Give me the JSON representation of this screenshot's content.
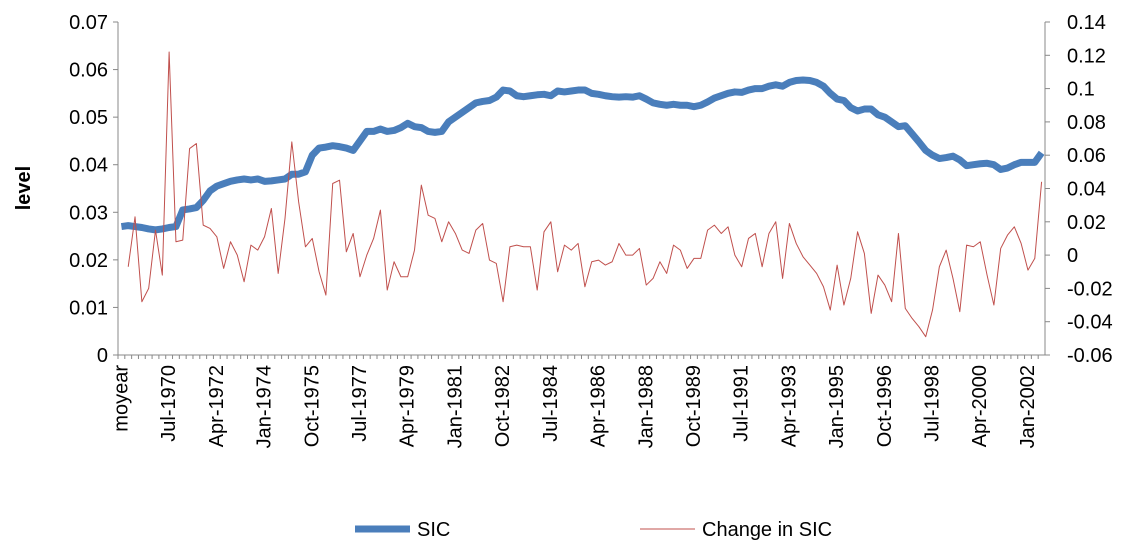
{
  "chart_data": {
    "type": "line",
    "y_label": "level",
    "categories": [
      "moyear",
      null,
      null,
      null,
      null,
      null,
      null,
      "Jul-1970",
      null,
      null,
      null,
      null,
      null,
      null,
      "Apr-1972",
      null,
      null,
      null,
      null,
      null,
      null,
      "Jan-1974",
      null,
      null,
      null,
      null,
      null,
      null,
      "Oct-1975",
      null,
      null,
      null,
      null,
      null,
      null,
      "Jul-1977",
      null,
      null,
      null,
      null,
      null,
      null,
      "Apr-1979",
      null,
      null,
      null,
      null,
      null,
      null,
      "Jan-1981",
      null,
      null,
      null,
      null,
      null,
      null,
      "Oct-1982",
      null,
      null,
      null,
      null,
      null,
      null,
      "Jul-1984",
      null,
      null,
      null,
      null,
      null,
      null,
      "Apr-1986",
      null,
      null,
      null,
      null,
      null,
      null,
      "Jan-1988",
      null,
      null,
      null,
      null,
      null,
      null,
      "Oct-1989",
      null,
      null,
      null,
      null,
      null,
      null,
      "Jul-1991",
      null,
      null,
      null,
      null,
      null,
      null,
      "Apr-1993",
      null,
      null,
      null,
      null,
      null,
      null,
      "Jan-1995",
      null,
      null,
      null,
      null,
      null,
      null,
      "Oct-1996",
      null,
      null,
      null,
      null,
      null,
      null,
      "Jul-1998",
      null,
      null,
      null,
      null,
      null,
      null,
      "Apr-2000",
      null,
      null,
      null,
      null,
      null,
      null,
      "Jan-2002",
      null,
      null
    ],
    "series": [
      {
        "name": "SIC",
        "color": "#4a7ebb",
        "values": [
          0.027,
          0.0272,
          0.027,
          0.0268,
          0.0265,
          0.0263,
          0.0265,
          0.0268,
          0.027,
          0.0305,
          0.0307,
          0.031,
          0.0325,
          0.0345,
          0.0355,
          0.036,
          0.0365,
          0.0368,
          0.037,
          0.0368,
          0.037,
          0.0365,
          0.0366,
          0.0368,
          0.037,
          0.038,
          0.038,
          0.0385,
          0.042,
          0.0435,
          0.0437,
          0.044,
          0.0438,
          0.0435,
          0.043,
          0.045,
          0.047,
          0.047,
          0.0475,
          0.047,
          0.0472,
          0.0478,
          0.0487,
          0.048,
          0.0478,
          0.047,
          0.0468,
          0.047,
          0.049,
          0.05,
          0.051,
          0.052,
          0.053,
          0.0533,
          0.0535,
          0.0542,
          0.0557,
          0.0555,
          0.0545,
          0.0543,
          0.0545,
          0.0547,
          0.0548,
          0.0545,
          0.0555,
          0.0553,
          0.0555,
          0.0557,
          0.0557,
          0.055,
          0.0548,
          0.0545,
          0.0543,
          0.0542,
          0.0543,
          0.0542,
          0.0545,
          0.0538,
          0.053,
          0.0527,
          0.0525,
          0.0527,
          0.0525,
          0.0525,
          0.0522,
          0.0525,
          0.0532,
          0.054,
          0.0545,
          0.055,
          0.0553,
          0.0552,
          0.0557,
          0.056,
          0.056,
          0.0565,
          0.0568,
          0.0565,
          0.0573,
          0.0577,
          0.0578,
          0.0577,
          0.0573,
          0.0565,
          0.055,
          0.0538,
          0.0535,
          0.052,
          0.0513,
          0.0517,
          0.0517,
          0.0505,
          0.05,
          0.049,
          0.048,
          0.0482,
          0.0465,
          0.0448,
          0.043,
          0.042,
          0.0413,
          0.0415,
          0.0418,
          0.041,
          0.0398,
          0.04,
          0.0402,
          0.0403,
          0.04,
          0.039,
          0.0393,
          0.04,
          0.0405,
          0.0405,
          0.0405,
          0.0425
        ]
      },
      {
        "name": "Change in SIC",
        "color": "#c0504d",
        "axis": "y2",
        "values": [
          null,
          -0.007,
          0.023,
          -0.028,
          -0.02,
          0.015,
          -0.012,
          0.122,
          0.008,
          0.009,
          0.064,
          0.067,
          0.018,
          0.016,
          0.011,
          -0.008,
          0.008,
          0,
          -0.016,
          0.006,
          0.003,
          0.011,
          0.028,
          -0.011,
          0.022,
          0.068,
          0.032,
          0.005,
          0.01,
          -0.01,
          -0.024,
          0.043,
          0.045,
          0.002,
          0.013,
          -0.013,
          0,
          0.01,
          0.027,
          -0.021,
          -0.004,
          -0.013,
          -0.013,
          0.003,
          0.042,
          0.024,
          0.022,
          0.008,
          0.02,
          0.013,
          0.003,
          0.001,
          0.015,
          0.019,
          -0.003,
          -0.005,
          -0.028,
          0.005,
          0.006,
          0.005,
          0.005,
          -0.021,
          0.014,
          0.02,
          -0.01,
          0.006,
          0.003,
          0.007,
          -0.019,
          -0.004,
          -0.003,
          -0.006,
          -0.004,
          0.007,
          0,
          0,
          0.004,
          -0.018,
          -0.014,
          -0.004,
          -0.011,
          0.006,
          0.003,
          -0.008,
          -0.002,
          -0.002,
          0.015,
          0.018,
          0.013,
          0.017,
          0,
          -0.007,
          0.01,
          0.013,
          -0.007,
          0.013,
          0.02,
          -0.014,
          0.019,
          0.007,
          -0.001,
          -0.006,
          -0.011,
          -0.019,
          -0.033,
          -0.006,
          -0.03,
          -0.014,
          0.014,
          0.001,
          -0.035,
          -0.012,
          -0.018,
          -0.028,
          0.013,
          -0.032,
          -0.038,
          -0.043,
          -0.049,
          -0.033,
          -0.007,
          0.003,
          -0.014,
          -0.034,
          0.006,
          0.005,
          0.008,
          -0.012,
          -0.03,
          0.004,
          0.012,
          0.017,
          0.007,
          -0.009,
          -0.002,
          0.044
        ]
      }
    ],
    "ylim": [
      0,
      0.07
    ],
    "yticks": [
      0,
      0.01,
      0.02,
      0.03,
      0.04,
      0.05,
      0.06,
      0.07
    ],
    "y2lim": [
      -0.06,
      0.14
    ],
    "y2ticks": [
      -0.06,
      -0.04,
      -0.02,
      0,
      0.02,
      0.04,
      0.06,
      0.08,
      0.1,
      0.12,
      0.14
    ],
    "grid": false,
    "legend": "bottom"
  }
}
